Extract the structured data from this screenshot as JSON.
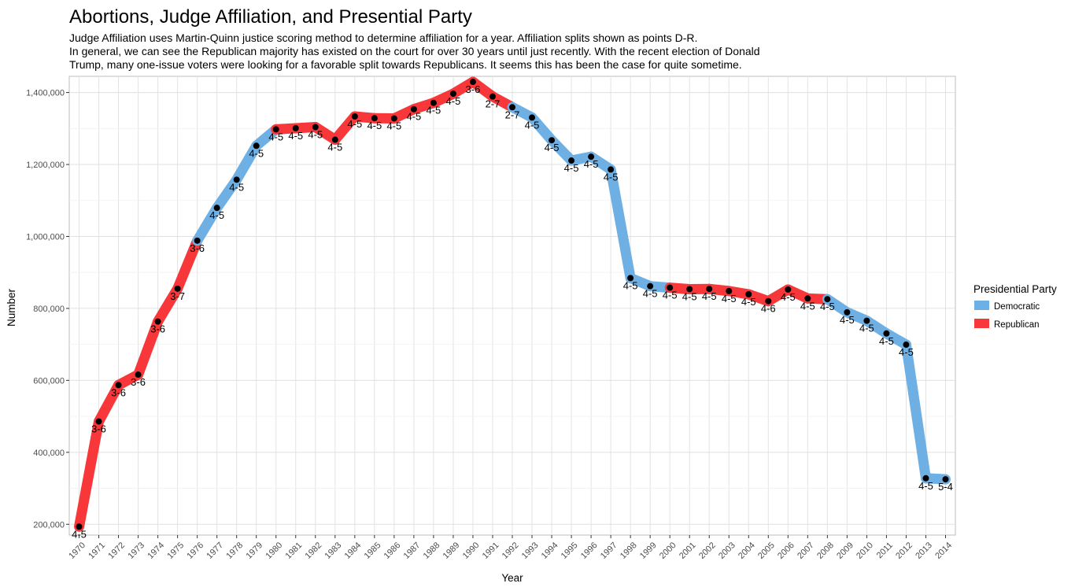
{
  "chart_data": {
    "type": "line",
    "title": "Abortions, Judge Affiliation, and Presential Party",
    "subtitle_lines": [
      "Judge Affiliation uses Martin-Quinn justice scoring method to determine affiliation for a year. Affiliation splits shown as points D-R.",
      "In general, we can see the Republican majority has existed on the court for over 30 years until just recently. With the recent election of Donald",
      "Trump, many one-issue voters were looking for a favorable split towards Republicans. It seems this has been the case for quite sometime."
    ],
    "xlabel": "Year",
    "ylabel": "Number",
    "ylim": [
      170000,
      1445000
    ],
    "yticks": [
      200000,
      400000,
      600000,
      800000,
      1000000,
      1200000,
      1400000
    ],
    "ytick_labels": [
      "200,000",
      "400,000",
      "600,000",
      "800,000",
      "1,000,000",
      "1,200,000",
      "1,400,000"
    ],
    "grid": true,
    "legend": {
      "title": "Presidential Party",
      "position": "right",
      "entries": [
        {
          "name": "Democratic",
          "color": "#6FB0E4"
        },
        {
          "name": "Republican",
          "color": "#F8373A"
        }
      ]
    },
    "colors": {
      "Democratic": "#6FB0E4",
      "Republican": "#F8373A",
      "point": "#000000"
    },
    "points": [
      {
        "year": "1970",
        "value": 193500,
        "split": "4-5",
        "party": "Republican"
      },
      {
        "year": "1971",
        "value": 485800,
        "split": "3-6",
        "party": "Republican"
      },
      {
        "year": "1972",
        "value": 586800,
        "split": "3-6",
        "party": "Republican"
      },
      {
        "year": "1973",
        "value": 615800,
        "split": "3-6",
        "party": "Republican"
      },
      {
        "year": "1974",
        "value": 763500,
        "split": "3-6",
        "party": "Republican"
      },
      {
        "year": "1975",
        "value": 854900,
        "split": "3-7",
        "party": "Republican"
      },
      {
        "year": "1976",
        "value": 988300,
        "split": "3-6",
        "party": "Republican"
      },
      {
        "year": "1977",
        "value": 1079400,
        "split": "4-5",
        "party": "Democratic"
      },
      {
        "year": "1978",
        "value": 1157800,
        "split": "4-5",
        "party": "Democratic"
      },
      {
        "year": "1979",
        "value": 1251900,
        "split": "4-5",
        "party": "Democratic"
      },
      {
        "year": "1980",
        "value": 1297600,
        "split": "4-5",
        "party": "Democratic"
      },
      {
        "year": "1981",
        "value": 1300800,
        "split": "4-5",
        "party": "Republican"
      },
      {
        "year": "1982",
        "value": 1303900,
        "split": "4-5",
        "party": "Republican"
      },
      {
        "year": "1983",
        "value": 1268900,
        "split": "4-5",
        "party": "Republican"
      },
      {
        "year": "1984",
        "value": 1333500,
        "split": "4-5",
        "party": "Republican"
      },
      {
        "year": "1985",
        "value": 1328600,
        "split": "4-5",
        "party": "Republican"
      },
      {
        "year": "1986",
        "value": 1328100,
        "split": "4-5",
        "party": "Republican"
      },
      {
        "year": "1987",
        "value": 1353700,
        "split": "4-5",
        "party": "Republican"
      },
      {
        "year": "1988",
        "value": 1371300,
        "split": "4-5",
        "party": "Republican"
      },
      {
        "year": "1989",
        "value": 1396700,
        "split": "4-5",
        "party": "Republican"
      },
      {
        "year": "1990",
        "value": 1429600,
        "split": "3-6",
        "party": "Republican"
      },
      {
        "year": "1991",
        "value": 1388900,
        "split": "2-7",
        "party": "Republican"
      },
      {
        "year": "1992",
        "value": 1359100,
        "split": "2-7",
        "party": "Republican"
      },
      {
        "year": "1993",
        "value": 1330400,
        "split": "4-5",
        "party": "Democratic"
      },
      {
        "year": "1994",
        "value": 1267400,
        "split": "4-5",
        "party": "Democratic"
      },
      {
        "year": "1995",
        "value": 1210900,
        "split": "4-5",
        "party": "Democratic"
      },
      {
        "year": "1996",
        "value": 1221600,
        "split": "4-5",
        "party": "Democratic"
      },
      {
        "year": "1997",
        "value": 1186000,
        "split": "4-5",
        "party": "Democratic"
      },
      {
        "year": "1998",
        "value": 884300,
        "split": "4-5",
        "party": "Democratic"
      },
      {
        "year": "1999",
        "value": 861800,
        "split": "4-5",
        "party": "Democratic"
      },
      {
        "year": "2000",
        "value": 857500,
        "split": "4-5",
        "party": "Democratic"
      },
      {
        "year": "2001",
        "value": 853500,
        "split": "4-5",
        "party": "Republican"
      },
      {
        "year": "2002",
        "value": 854100,
        "split": "4-5",
        "party": "Republican"
      },
      {
        "year": "2003",
        "value": 848200,
        "split": "4-5",
        "party": "Republican"
      },
      {
        "year": "2004",
        "value": 839200,
        "split": "4-5",
        "party": "Republican"
      },
      {
        "year": "2005",
        "value": 820200,
        "split": "4-6",
        "party": "Republican"
      },
      {
        "year": "2006",
        "value": 852400,
        "split": "4-5",
        "party": "Republican"
      },
      {
        "year": "2007",
        "value": 827600,
        "split": "4-5",
        "party": "Republican"
      },
      {
        "year": "2008",
        "value": 825600,
        "split": "4-5",
        "party": "Republican"
      },
      {
        "year": "2009",
        "value": 789200,
        "split": "4-5",
        "party": "Democratic"
      },
      {
        "year": "2010",
        "value": 765700,
        "split": "4-5",
        "party": "Democratic"
      },
      {
        "year": "2011",
        "value": 730300,
        "split": "4-5",
        "party": "Democratic"
      },
      {
        "year": "2012",
        "value": 699200,
        "split": "4-5",
        "party": "Democratic"
      },
      {
        "year": "2013",
        "value": 327900,
        "split": "4-5",
        "party": "Democratic"
      },
      {
        "year": "2014",
        "value": 325000,
        "split": "5-4",
        "party": "Democratic"
      }
    ]
  }
}
